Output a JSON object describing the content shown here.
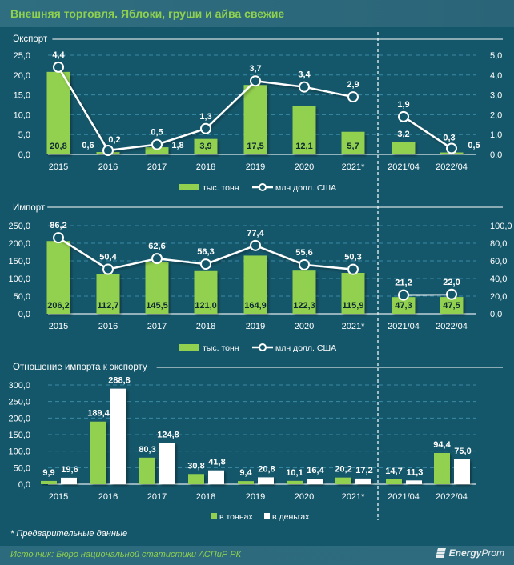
{
  "header": {
    "title": "Внешняя торговля. Яблоки, груши и айва свежие"
  },
  "footer": {
    "note": "* Предварительные данные",
    "source": "Источник: Бюро национальной статистики АСПиР РК",
    "logo_bold": "Energy",
    "logo_rest": "Prom"
  },
  "colors": {
    "background": "#15576a",
    "green": "#92d050",
    "white": "#ffffff",
    "title": "#8fd14f"
  },
  "chart_data": [
    {
      "type": "bar+line",
      "title": "Экспорт",
      "categories": [
        "2015",
        "2016",
        "2017",
        "2018",
        "2019",
        "2020",
        "2021*",
        "2021/04",
        "2022/04"
      ],
      "series": [
        {
          "name": "тыс. тонн",
          "type": "bar",
          "axis": "left",
          "values": [
            20.8,
            0.6,
            1.8,
            3.9,
            17.5,
            12.1,
            5.7,
            3.2,
            0.5
          ],
          "labels": [
            "20,8",
            "0,6",
            "1,8",
            "3,9",
            "17,5",
            "12,1",
            "5,7",
            "3,2",
            "0,5"
          ]
        },
        {
          "name": "млн долл. США",
          "type": "line",
          "axis": "right",
          "values": [
            4.4,
            0.2,
            0.5,
            1.3,
            3.7,
            3.4,
            2.9,
            1.9,
            0.3
          ],
          "labels": [
            "4,4",
            "0,2",
            "0,5",
            "1,3",
            "3,7",
            "3,4",
            "2,9",
            "1,9",
            "0,3"
          ]
        }
      ],
      "left_ylim": [
        0,
        25
      ],
      "left_ticks": [
        "0,0",
        "5,0",
        "10,0",
        "15,0",
        "20,0",
        "25,0"
      ],
      "right_ylim": [
        0,
        5
      ],
      "right_ticks": [
        "0,0",
        "1,0",
        "2,0",
        "3,0",
        "4,0",
        "5,0"
      ],
      "legend": [
        "тыс. тонн",
        "млн долл. США"
      ],
      "legend_position": "bottom",
      "grid": true
    },
    {
      "type": "bar+line",
      "title": "Импорт",
      "categories": [
        "2015",
        "2016",
        "2017",
        "2018",
        "2019",
        "2020",
        "2021*",
        "2021/04",
        "2022/04"
      ],
      "series": [
        {
          "name": "тыс. тонн",
          "type": "bar",
          "axis": "left",
          "values": [
            206.2,
            112.7,
            145.5,
            121.0,
            164.9,
            122.3,
            115.9,
            47.3,
            47.5
          ],
          "labels": [
            "206,2",
            "112,7",
            "145,5",
            "121,0",
            "164,9",
            "122,3",
            "115,9",
            "47,3",
            "47,5"
          ]
        },
        {
          "name": "млн долл. США",
          "type": "line",
          "axis": "right",
          "values": [
            86.2,
            50.4,
            62.6,
            56.3,
            77.4,
            55.6,
            50.3,
            21.2,
            22.0
          ],
          "labels": [
            "86,2",
            "50,4",
            "62,6",
            "56,3",
            "77,4",
            "55,6",
            "50,3",
            "21,2",
            "22,0"
          ]
        }
      ],
      "left_ylim": [
        0,
        250
      ],
      "left_ticks": [
        "0,0",
        "50,0",
        "100,0",
        "150,0",
        "200,0",
        "250,0"
      ],
      "right_ylim": [
        0,
        100
      ],
      "right_ticks": [
        "0,0",
        "20,0",
        "40,0",
        "60,0",
        "80,0",
        "100,0"
      ],
      "legend": [
        "тыс. тонн",
        "млн долл. США"
      ],
      "legend_position": "bottom",
      "grid": true
    },
    {
      "type": "bar",
      "title": "Отношение импорта к экспорту",
      "categories": [
        "2015",
        "2016",
        "2017",
        "2018",
        "2019",
        "2020",
        "2021*",
        "2021/04",
        "2022/04"
      ],
      "series": [
        {
          "name": "в тоннах",
          "values": [
            9.9,
            189.4,
            80.3,
            30.8,
            9.4,
            10.1,
            20.2,
            14.7,
            94.4
          ],
          "labels": [
            "9,9",
            "189,4",
            "80,3",
            "30,8",
            "9,4",
            "10,1",
            "20,2",
            "14,7",
            "94,4"
          ]
        },
        {
          "name": "в деньгах",
          "values": [
            19.6,
            288.8,
            124.8,
            41.8,
            20.8,
            16.4,
            17.2,
            11.3,
            75.0
          ],
          "labels": [
            "19,6",
            "288,8",
            "124,8",
            "41,8",
            "20,8",
            "16,4",
            "17,2",
            "11,3",
            "75,0"
          ]
        }
      ],
      "ylim": [
        0,
        300
      ],
      "ticks": [
        "0,0",
        "50,0",
        "100,0",
        "150,0",
        "200,0",
        "250,0",
        "300,0"
      ],
      "legend": [
        "в тоннах",
        "в деньгах"
      ],
      "legend_position": "bottom",
      "grid": true
    }
  ]
}
